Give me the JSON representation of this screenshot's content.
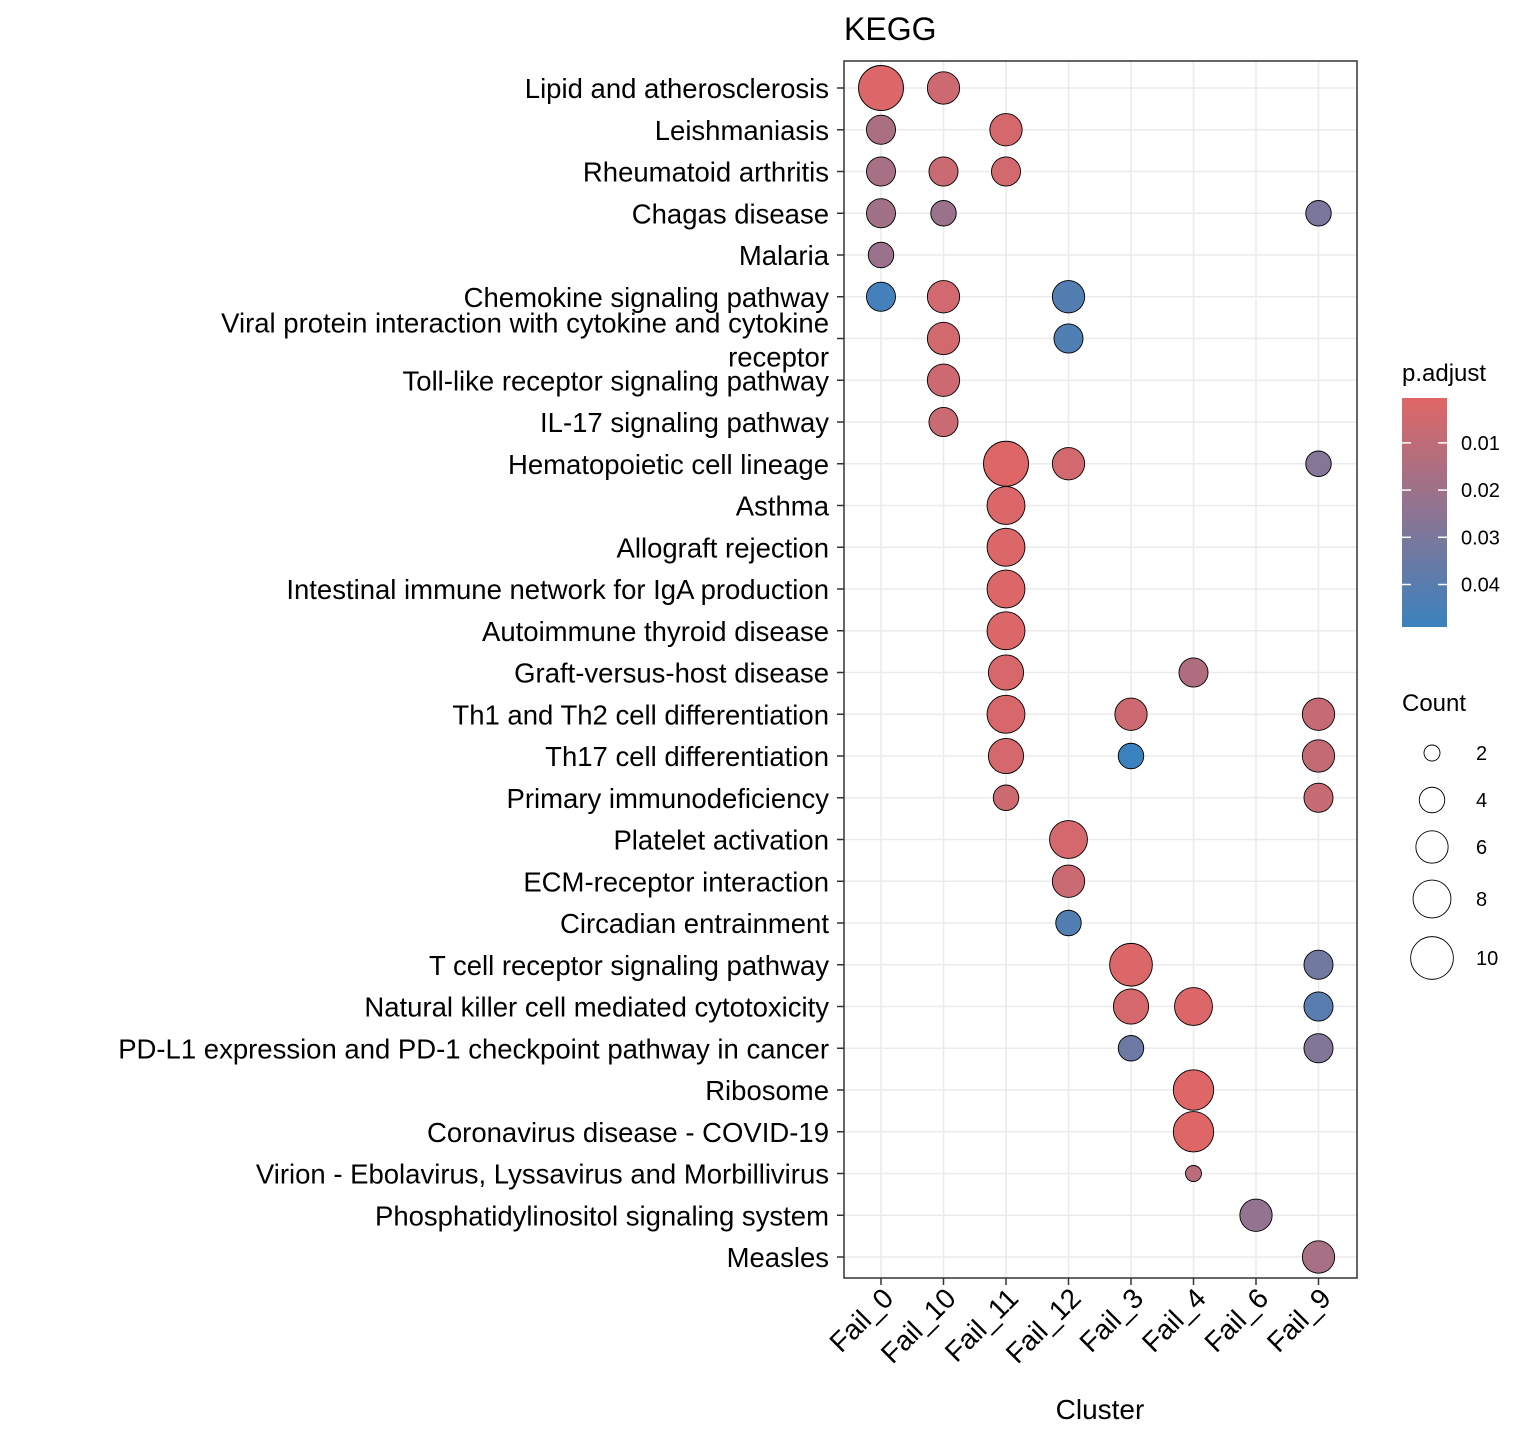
{
  "chart_data": {
    "type": "scatter",
    "title": "KEGG",
    "xlabel": "Cluster",
    "ylabel": "",
    "categories": [
      "Fail_0",
      "Fail_10",
      "Fail_11",
      "Fail_12",
      "Fail_3",
      "Fail_4",
      "Fail_6",
      "Fail_9"
    ],
    "terms": [
      "Lipid and atherosclerosis",
      "Leishmaniasis",
      "Rheumatoid arthritis",
      "Chagas disease",
      "Malaria",
      "Chemokine signaling pathway",
      "Viral protein interaction with cytokine and cytokine\nreceptor",
      "Toll-like receptor signaling pathway",
      "IL-17 signaling pathway",
      "Hematopoietic cell lineage",
      "Asthma",
      "Allograft rejection",
      "Intestinal immune network for IgA production",
      "Autoimmune thyroid disease",
      "Graft-versus-host disease",
      "Th1 and Th2 cell differentiation",
      "Th17 cell differentiation",
      "Primary immunodeficiency",
      "Platelet activation",
      "ECM-receptor interaction",
      "Circadian entrainment",
      "T cell receptor signaling pathway",
      "Natural killer cell mediated cytotoxicity",
      "PD-L1 expression and PD-1 checkpoint pathway in cancer",
      "Ribosome",
      "Coronavirus disease - COVID-19",
      "Virion - Ebolavirus, Lyssavirus and Morbillivirus",
      "Phosphatidylinositol signaling system",
      "Measles"
    ],
    "points": [
      {
        "term": 0,
        "cluster": 0,
        "count": 11,
        "p_adjust": 0.002
      },
      {
        "term": 0,
        "cluster": 1,
        "count": 6,
        "p_adjust": 0.006
      },
      {
        "term": 1,
        "cluster": 0,
        "count": 5,
        "p_adjust": 0.016
      },
      {
        "term": 1,
        "cluster": 2,
        "count": 6,
        "p_adjust": 0.004
      },
      {
        "term": 2,
        "cluster": 0,
        "count": 5,
        "p_adjust": 0.017
      },
      {
        "term": 2,
        "cluster": 1,
        "count": 5,
        "p_adjust": 0.007
      },
      {
        "term": 2,
        "cluster": 2,
        "count": 5,
        "p_adjust": 0.005
      },
      {
        "term": 3,
        "cluster": 0,
        "count": 5,
        "p_adjust": 0.019
      },
      {
        "term": 3,
        "cluster": 1,
        "count": 4,
        "p_adjust": 0.021
      },
      {
        "term": 3,
        "cluster": 7,
        "count": 4,
        "p_adjust": 0.03
      },
      {
        "term": 4,
        "cluster": 0,
        "count": 4,
        "p_adjust": 0.021
      },
      {
        "term": 5,
        "cluster": 0,
        "count": 5,
        "p_adjust": 0.046
      },
      {
        "term": 5,
        "cluster": 1,
        "count": 6,
        "p_adjust": 0.005
      },
      {
        "term": 5,
        "cluster": 3,
        "count": 6,
        "p_adjust": 0.042
      },
      {
        "term": 6,
        "cluster": 1,
        "count": 6,
        "p_adjust": 0.005
      },
      {
        "term": 6,
        "cluster": 3,
        "count": 5,
        "p_adjust": 0.043
      },
      {
        "term": 7,
        "cluster": 1,
        "count": 6,
        "p_adjust": 0.006
      },
      {
        "term": 8,
        "cluster": 1,
        "count": 5,
        "p_adjust": 0.007
      },
      {
        "term": 9,
        "cluster": 2,
        "count": 11,
        "p_adjust": 0.001
      },
      {
        "term": 9,
        "cluster": 3,
        "count": 6,
        "p_adjust": 0.005
      },
      {
        "term": 9,
        "cluster": 7,
        "count": 4,
        "p_adjust": 0.027
      },
      {
        "term": 10,
        "cluster": 2,
        "count": 8,
        "p_adjust": 0.002
      },
      {
        "term": 11,
        "cluster": 2,
        "count": 8,
        "p_adjust": 0.002
      },
      {
        "term": 12,
        "cluster": 2,
        "count": 8,
        "p_adjust": 0.002
      },
      {
        "term": 13,
        "cluster": 2,
        "count": 8,
        "p_adjust": 0.002
      },
      {
        "term": 14,
        "cluster": 2,
        "count": 7,
        "p_adjust": 0.003
      },
      {
        "term": 14,
        "cluster": 5,
        "count": 5,
        "p_adjust": 0.015
      },
      {
        "term": 15,
        "cluster": 2,
        "count": 8,
        "p_adjust": 0.003
      },
      {
        "term": 15,
        "cluster": 4,
        "count": 6,
        "p_adjust": 0.006
      },
      {
        "term": 15,
        "cluster": 7,
        "count": 6,
        "p_adjust": 0.008
      },
      {
        "term": 16,
        "cluster": 2,
        "count": 7,
        "p_adjust": 0.004
      },
      {
        "term": 16,
        "cluster": 4,
        "count": 4,
        "p_adjust": 0.049
      },
      {
        "term": 16,
        "cluster": 7,
        "count": 6,
        "p_adjust": 0.009
      },
      {
        "term": 17,
        "cluster": 2,
        "count": 4,
        "p_adjust": 0.006
      },
      {
        "term": 17,
        "cluster": 7,
        "count": 5,
        "p_adjust": 0.008
      },
      {
        "term": 18,
        "cluster": 3,
        "count": 8,
        "p_adjust": 0.004
      },
      {
        "term": 19,
        "cluster": 3,
        "count": 6,
        "p_adjust": 0.007
      },
      {
        "term": 20,
        "cluster": 3,
        "count": 4,
        "p_adjust": 0.042
      },
      {
        "term": 21,
        "cluster": 4,
        "count": 10,
        "p_adjust": 0.002
      },
      {
        "term": 21,
        "cluster": 7,
        "count": 5,
        "p_adjust": 0.033
      },
      {
        "term": 22,
        "cluster": 4,
        "count": 7,
        "p_adjust": 0.004
      },
      {
        "term": 22,
        "cluster": 5,
        "count": 8,
        "p_adjust": 0.002
      },
      {
        "term": 22,
        "cluster": 7,
        "count": 5,
        "p_adjust": 0.04
      },
      {
        "term": 23,
        "cluster": 4,
        "count": 4,
        "p_adjust": 0.034
      },
      {
        "term": 23,
        "cluster": 7,
        "count": 5,
        "p_adjust": 0.028
      },
      {
        "term": 24,
        "cluster": 5,
        "count": 9,
        "p_adjust": 0.001
      },
      {
        "term": 25,
        "cluster": 5,
        "count": 9,
        "p_adjust": 0.001
      },
      {
        "term": 26,
        "cluster": 5,
        "count": 2,
        "p_adjust": 0.012
      },
      {
        "term": 27,
        "cluster": 6,
        "count": 6,
        "p_adjust": 0.023
      },
      {
        "term": 28,
        "cluster": 7,
        "count": 6,
        "p_adjust": 0.017
      }
    ],
    "color_legend": {
      "title": "p.adjust",
      "ticks": [
        0.01,
        0.02,
        0.03,
        0.04
      ],
      "range": [
        0.0005,
        0.049
      ],
      "low_color": "#E06666",
      "high_color": "#3A82BE"
    },
    "size_legend": {
      "title": "Count",
      "values": [
        2,
        4,
        6,
        8,
        10
      ]
    },
    "grid": true
  }
}
